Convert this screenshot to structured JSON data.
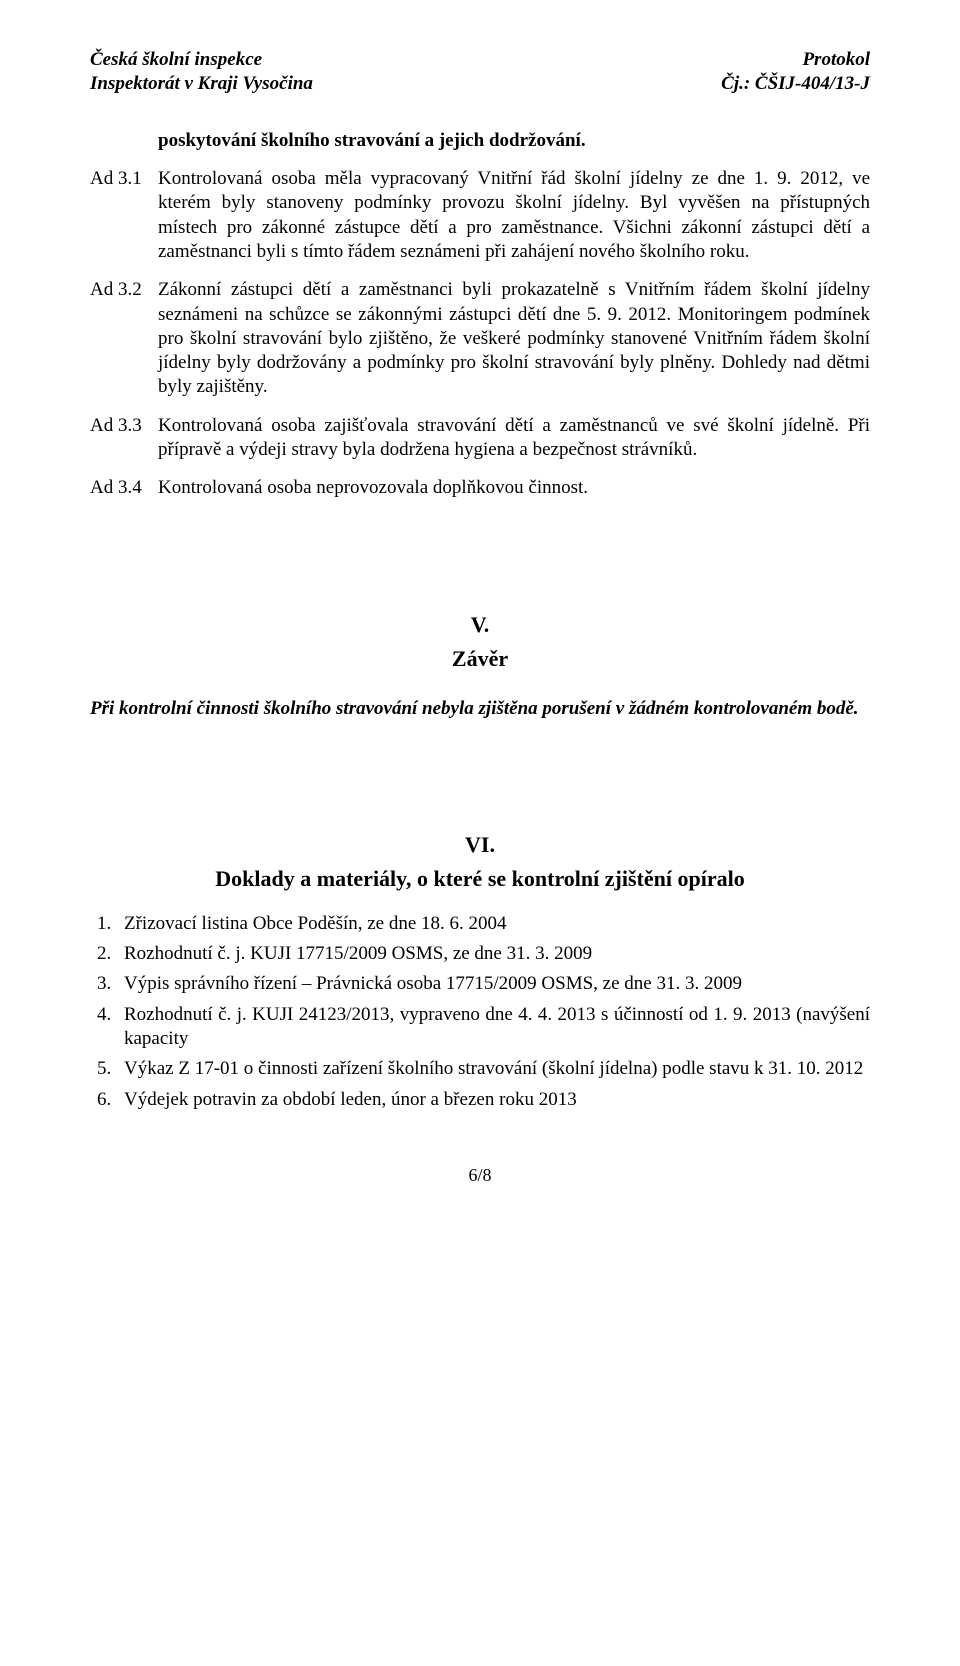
{
  "header": {
    "left_line1": "Česká školní inspekce",
    "left_line2": "Inspektorát v Kraji Vysočina",
    "right_line1": "Protokol",
    "right_line2": "Čj.: ČŠIJ-404/13-J"
  },
  "intro": "poskytování školního stravování a jejich dodržování.",
  "ads": [
    {
      "label": "Ad 3.1",
      "text": "Kontrolovaná osoba měla vypracovaný Vnitřní řád školní jídelny ze dne 1. 9. 2012, ve kterém byly stanoveny podmínky provozu školní jídelny. Byl vyvěšen na přístupných místech pro zákonné zástupce dětí a pro zaměstnance. Všichni zákonní zástupci dětí a zaměstnanci byli s tímto řádem seznámeni při zahájení nového školního roku."
    },
    {
      "label": "Ad 3.2",
      "text": "Zákonní zástupci dětí a zaměstnanci byli prokazatelně s Vnitřním řádem školní jídelny seznámeni na schůzce se zákonnými zástupci dětí dne 5. 9. 2012. Monitoringem podmínek pro školní stravování bylo zjištěno, že veškeré podmínky stanovené Vnitřním řádem školní jídelny byly dodržovány a podmínky pro školní stravování byly plněny. Dohledy nad dětmi byly zajištěny."
    },
    {
      "label": "Ad 3.3",
      "text": "Kontrolovaná osoba zajišťovala stravování dětí a zaměstnanců ve své školní jídelně. Při přípravě a výdeji stravy byla dodržena hygiena a bezpečnost strávníků."
    },
    {
      "label": "Ad 3.4",
      "text": "Kontrolovaná osoba neprovozovala doplňkovou činnost."
    }
  ],
  "section_v": {
    "num": "V.",
    "title": "Závěr",
    "text": "Při kontrolní činnosti školního stravování nebyla zjištěna porušení v žádném kontrolovaném bodě."
  },
  "section_vi": {
    "num": "VI.",
    "title": "Doklady a materiály, o které se kontrolní zjištění opíralo",
    "items": [
      "Zřizovací listina Obce Poděšín, ze dne 18. 6. 2004",
      "Rozhodnutí č. j. KUJI 17715/2009 OSMS, ze dne 31. 3. 2009",
      "Výpis správního řízení – Právnická osoba 17715/2009 OSMS, ze dne 31. 3. 2009",
      "Rozhodnutí č. j. KUJI 24123/2013, vypraveno dne 4. 4. 2013 s účinností od 1. 9. 2013 (navýšení kapacity",
      "Výkaz Z 17-01 o činnosti zařízení školního stravování (školní jídelna) podle stavu k 31. 10. 2012",
      "Výdejek potravin za období leden, únor a březen roku 2013"
    ]
  },
  "page_number": "6/8"
}
